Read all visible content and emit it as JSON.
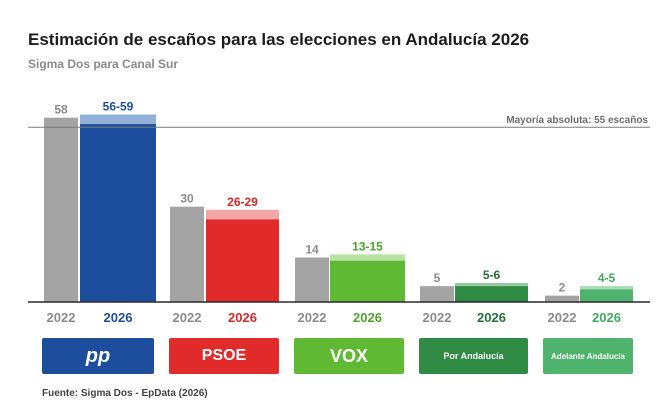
{
  "title": "Estimación de escaños para las elecciones en Andalucía 2026",
  "subtitle": "Sigma Dos para Canal Sur",
  "source": "Fuente: Sigma Dos - EpData (2026)",
  "chart_data": {
    "type": "bar",
    "categories": [
      "PP",
      "PSOE",
      "VOX",
      "Por Andalucía",
      "Adelante Andalucía"
    ],
    "series": [
      {
        "name": "2022",
        "values": [
          58,
          30,
          14,
          5,
          2
        ],
        "labels": [
          "58",
          "30",
          "14",
          "5",
          "2"
        ]
      },
      {
        "name": "2026",
        "ranges": [
          [
            56,
            59
          ],
          [
            26,
            29
          ],
          [
            13,
            15
          ],
          [
            5,
            6
          ],
          [
            4,
            5
          ]
        ],
        "labels": [
          "56-59",
          "26-29",
          "13-15",
          "5-6",
          "4-5"
        ]
      }
    ],
    "reference_line": {
      "value": 55,
      "label": "Mayoría absoluta: 55 escaños"
    },
    "ylim": [
      0,
      62
    ],
    "colors": {
      "old": "#a4a4a4",
      "new": [
        "#1d4e9e",
        "#e12b2b",
        "#5fb932",
        "#2f8b43",
        "#4eb36d"
      ],
      "new_light": [
        "#93b0d8",
        "#f2a6a6",
        "#b9e3a2",
        "#96c9a1",
        "#a7dcb5"
      ],
      "new_text": [
        "#1d4e9e",
        "#d42727",
        "#4da62a",
        "#237236",
        "#45a862"
      ],
      "old_text": "#8c8c8c"
    }
  },
  "logos": [
    {
      "label": "pp",
      "icon": "pp-logo",
      "color": "#1d4e9e"
    },
    {
      "label": "PSOE",
      "icon": "psoe-logo",
      "color": "#e12b2b"
    },
    {
      "label": "VOX",
      "icon": "vox-logo",
      "color": "#5fb932"
    },
    {
      "label": "Por Andalucía",
      "icon": "por-andalucia-logo",
      "color": "#2f8b43"
    },
    {
      "label": "Adelante Andalucía",
      "icon": "adelante-andalucia-logo",
      "color": "#4eb36d"
    }
  ]
}
